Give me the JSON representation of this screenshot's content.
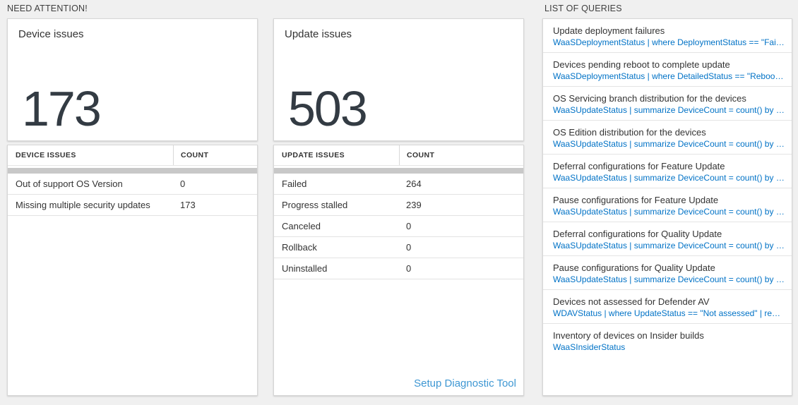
{
  "colors": {
    "page_background": "#f0f0f0",
    "accent_blue": "#0072c6",
    "link_blue": "#3e97d3",
    "big_number": "#333b43",
    "scrollbar_gray": "#c8c8c8"
  },
  "sections": {
    "need_attention": "NEED ATTENTION!",
    "list_of_queries": "LIST OF QUERIES"
  },
  "device_card": {
    "title": "Device issues",
    "count": "173",
    "table": {
      "headers": [
        "DEVICE ISSUES",
        "COUNT"
      ],
      "rows": [
        {
          "label": "Out of support OS Version",
          "count": "0"
        },
        {
          "label": "Missing multiple security updates",
          "count": "173"
        }
      ]
    }
  },
  "update_card": {
    "title": "Update issues",
    "count": "503",
    "table": {
      "headers": [
        "UPDATE ISSUES",
        "COUNT"
      ],
      "rows": [
        {
          "label": "Failed",
          "count": "264"
        },
        {
          "label": "Progress stalled",
          "count": "239"
        },
        {
          "label": "Canceled",
          "count": "0"
        },
        {
          "label": "Rollback",
          "count": "0"
        },
        {
          "label": "Uninstalled",
          "count": "0"
        }
      ]
    },
    "link": "Setup Diagnostic Tool"
  },
  "queries": [
    {
      "title": "Update deployment failures",
      "query": "WaaSDeploymentStatus | where DeploymentStatus == \"Failed\" |..."
    },
    {
      "title": "Devices pending reboot to complete update",
      "query": "WaaSDeploymentStatus | where DetailedStatus == \"Reboot pend..."
    },
    {
      "title": "OS Servicing branch distribution for the devices",
      "query": "WaaSUpdateStatus | summarize DeviceCount = count() by OSSer..."
    },
    {
      "title": "OS Edition distribution for the devices",
      "query": "WaaSUpdateStatus | summarize DeviceCount = count() by OSEdit..."
    },
    {
      "title": "Deferral configurations for Feature Update",
      "query": "WaaSUpdateStatus | summarize DeviceCount = count() by Featur..."
    },
    {
      "title": "Pause configurations for Feature Update",
      "query": "WaaSUpdateStatus | summarize DeviceCount = count() by Featur..."
    },
    {
      "title": "Deferral configurations for Quality Update",
      "query": "WaaSUpdateStatus | summarize DeviceCount = count() by Qualit..."
    },
    {
      "title": "Pause configurations for Quality Update",
      "query": "WaaSUpdateStatus | summarize DeviceCount = count() by Qualit..."
    },
    {
      "title": "Devices not assessed for Defender AV",
      "query": "WDAVStatus | where UpdateStatus == \"Not assessed\" | render ta..."
    },
    {
      "title": "Inventory of devices on Insider builds",
      "query": "WaaSInsiderStatus"
    }
  ]
}
